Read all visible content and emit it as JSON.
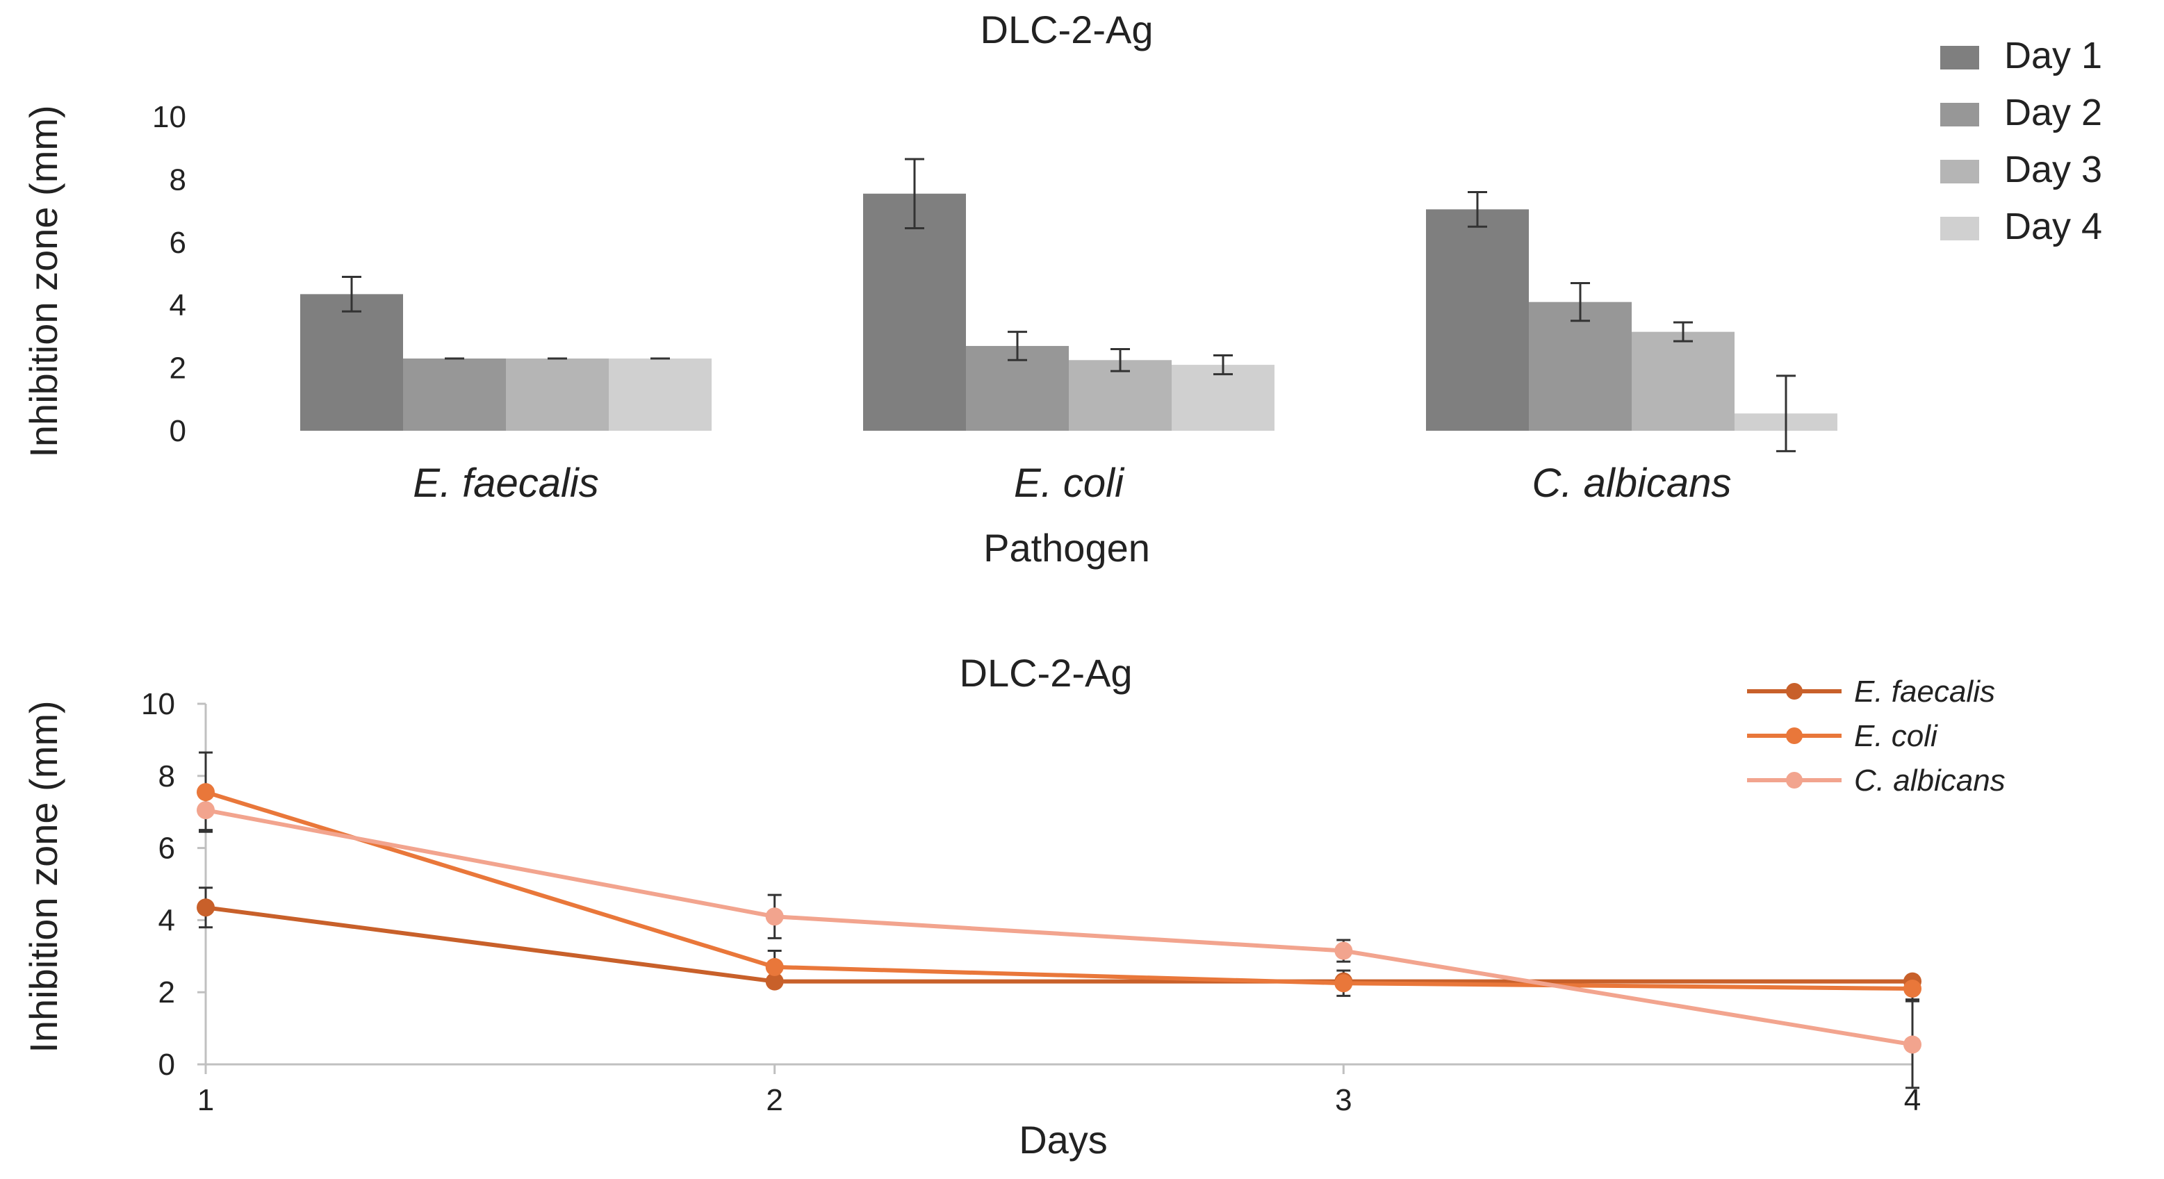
{
  "chart_data": [
    {
      "type": "bar",
      "title": "DLC-2-Ag",
      "xlabel": "Pathogen",
      "ylabel": "Inhibition zone (mm)",
      "ylim": [
        0,
        10
      ],
      "yticks": [
        "0",
        "2",
        "4",
        "6",
        "8",
        "10"
      ],
      "grid": false,
      "legend_position": "top-right",
      "categories": [
        "E. faecalis",
        "E. coli",
        "C. albicans"
      ],
      "series": [
        {
          "name": "Day 1",
          "color": "#7f7f7f",
          "values": [
            4.35,
            7.55,
            7.05
          ],
          "errors": [
            0.55,
            1.1,
            0.55
          ]
        },
        {
          "name": "Day 2",
          "color": "#979797",
          "values": [
            2.3,
            2.7,
            4.1
          ],
          "errors": [
            0.0,
            0.45,
            0.6
          ]
        },
        {
          "name": "Day 3",
          "color": "#b5b5b5",
          "values": [
            2.3,
            2.25,
            3.15
          ],
          "errors": [
            0.0,
            0.35,
            0.3
          ]
        },
        {
          "name": "Day 4",
          "color": "#d0d0d0",
          "values": [
            2.3,
            2.1,
            0.55
          ],
          "errors": [
            0.0,
            0.3,
            1.2
          ]
        }
      ]
    },
    {
      "type": "line",
      "title": "DLC-2-Ag",
      "xlabel": "Days",
      "ylabel": "Inhibition zone (mm)",
      "x": [
        1,
        2,
        3,
        4
      ],
      "xticks": [
        "1",
        "2",
        "3",
        "4"
      ],
      "ylim": [
        0,
        10
      ],
      "yticks": [
        "0",
        "2",
        "4",
        "6",
        "8",
        "10"
      ],
      "grid": false,
      "legend_position": "top-right",
      "series": [
        {
          "name": "E. faecalis",
          "color": "#c8602a",
          "values": [
            4.35,
            2.3,
            2.3,
            2.3
          ],
          "errors": [
            0.55,
            0.0,
            0.0,
            0.0
          ]
        },
        {
          "name": "E. coli",
          "color": "#e9773a",
          "values": [
            7.55,
            2.7,
            2.25,
            2.1
          ],
          "errors": [
            1.1,
            0.45,
            0.35,
            0.3
          ]
        },
        {
          "name": "C. albicans",
          "color": "#f2a48e",
          "values": [
            7.05,
            4.1,
            3.15,
            0.55
          ],
          "errors": [
            0.55,
            0.6,
            0.3,
            1.2
          ]
        }
      ]
    }
  ]
}
